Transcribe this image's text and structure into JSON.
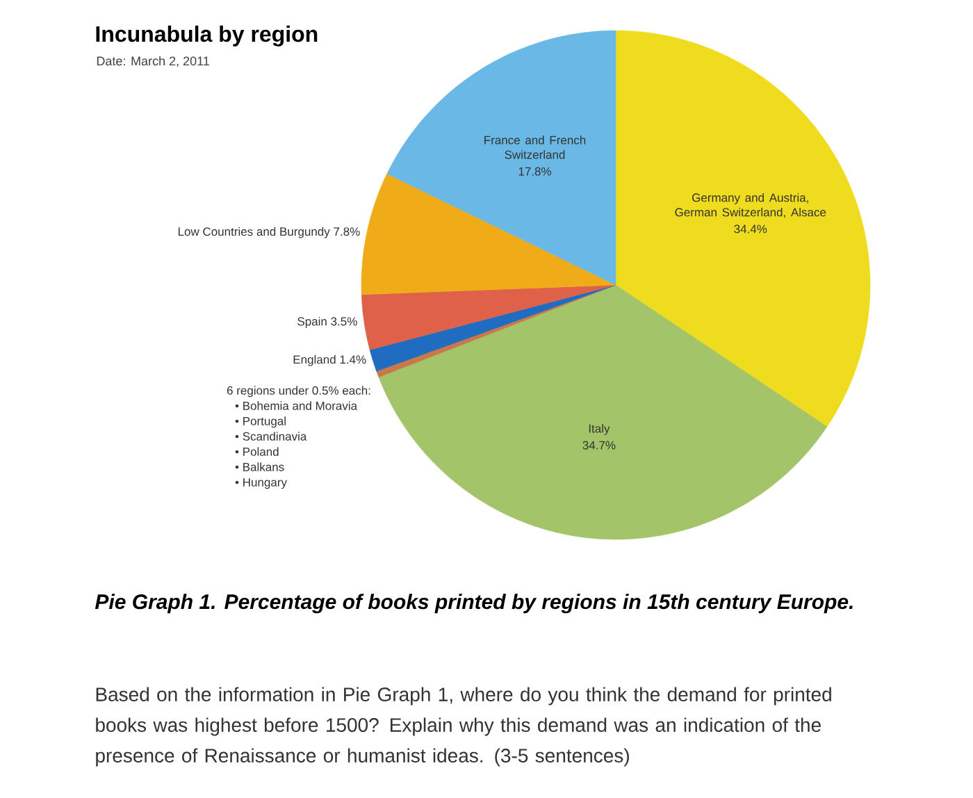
{
  "chart_data": {
    "type": "pie",
    "title": "Incunabula by region",
    "subtitle": "Date: March 2, 2011",
    "categories": [
      "Germany and Austria, German Switzerland, Alsace",
      "Italy",
      null,
      "England",
      "Spain",
      "Low Countries and Burgundy",
      "France and French Switzerland"
    ],
    "values": [
      34.4,
      34.7,
      0.4,
      1.4,
      3.5,
      7.8,
      17.8
    ],
    "value_labels": [
      "34.4%",
      "34.7%",
      null,
      "1.4%",
      "3.5%",
      "7.8%",
      "17.8%"
    ],
    "colors": [
      "#f0dc1e",
      "#a4c46a",
      "#c8784a",
      "#1f6cc0",
      "#e0614a",
      "#f0ac18",
      "#6ab8e6"
    ],
    "annotations": [
      "6 regions under 0.5% each:",
      "• Bohemia and Moravia",
      "• Portugal",
      "• Scandinavia",
      "• Poland",
      "• Balkans",
      "• Hungary",
      "Pie Graph 1. Percentage of books printed by regions in 15th century Europe.",
      "Based on the information in Pie Graph 1, where do you think the demand for printed books was highest before 1500? Explain why this demand was an indication of the presence of Renaissance or humanist ideas. (3-5 sentences)"
    ]
  }
}
